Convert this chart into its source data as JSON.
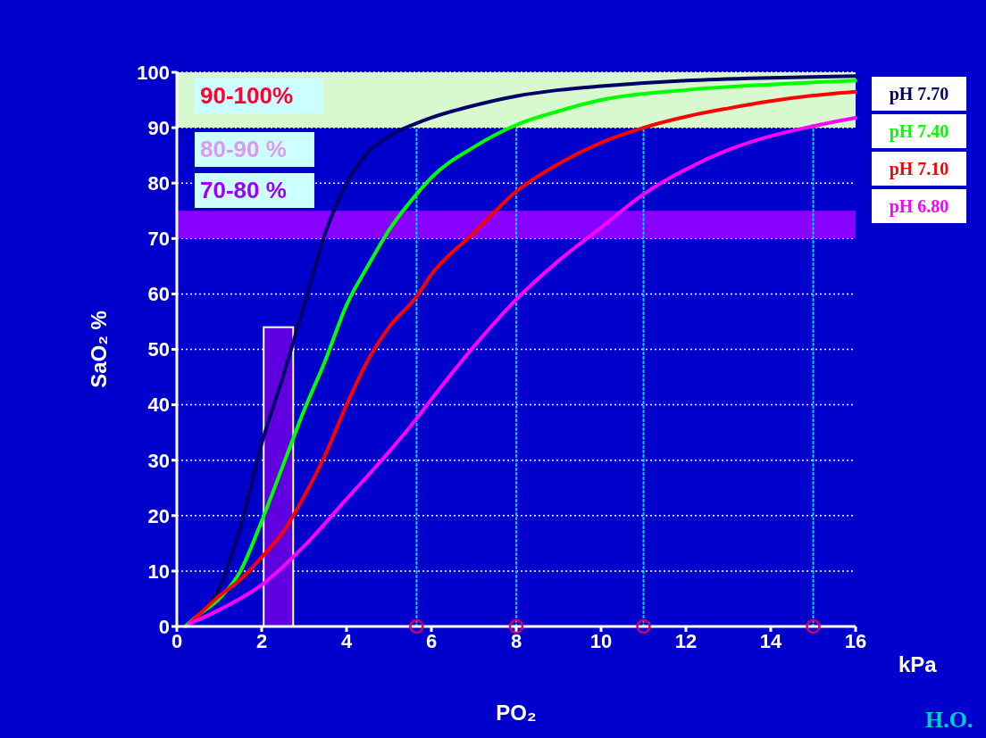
{
  "chart_data": {
    "type": "line",
    "xlabel": "PO₂",
    "ylabel": "SaO₂ %",
    "xlim": [
      0,
      16
    ],
    "xticks": [
      0,
      2,
      4,
      6,
      8,
      10,
      12,
      14,
      16
    ],
    "ylim": [
      0,
      100
    ],
    "yticks": [
      0,
      10,
      20,
      30,
      40,
      50,
      60,
      70,
      80,
      90,
      100
    ],
    "grid": "y",
    "legend": "right",
    "marker": "none",
    "line_style": "solid",
    "annotations": [
      "90-100%",
      "80-90 %",
      "70-80 %",
      "kPa",
      "H.O."
    ],
    "bands": [
      {
        "axis": "y",
        "from": 90,
        "to": 100,
        "color": "#d8f8d0"
      },
      {
        "axis": "y",
        "from": 70,
        "to": 75,
        "color": "#8800ff"
      }
    ],
    "series": [
      {
        "type": "bar",
        "color": "#6000e0",
        "x": [
          2.4
        ],
        "values": [
          54
        ]
      },
      {
        "type": "line",
        "line_style": "dotted",
        "color": "#00ccff",
        "x": [
          5.65,
          5.65
        ],
        "values": [
          0,
          90
        ]
      },
      {
        "type": "line",
        "line_style": "dotted",
        "color": "#00ccff",
        "x": [
          8,
          8
        ],
        "values": [
          0,
          90
        ]
      },
      {
        "type": "line",
        "line_style": "dotted",
        "color": "#00ccff",
        "x": [
          11,
          11
        ],
        "values": [
          0,
          90
        ]
      },
      {
        "type": "line",
        "line_style": "dotted",
        "color": "#00ccff",
        "x": [
          15,
          15
        ],
        "values": [
          0,
          90
        ]
      },
      {
        "name": "pH 7.70",
        "color": "#000066",
        "x": [
          0.2,
          0.5,
          1,
          1.5,
          2,
          2.5,
          3,
          3.5,
          4,
          4.5,
          5,
          5.65,
          6,
          7,
          8,
          9,
          10,
          12,
          14,
          16
        ],
        "values": [
          0,
          2,
          7,
          18,
          33,
          45,
          58,
          71,
          80,
          85.5,
          88.5,
          90.8,
          91.8,
          94,
          95.7,
          96.8,
          97.5,
          98.5,
          99,
          99.3
        ]
      },
      {
        "name": "pH 7.40",
        "color": "#00ff00",
        "x": [
          0.2,
          0.5,
          1,
          1.5,
          2,
          2.5,
          3,
          3.5,
          4,
          4.5,
          5,
          5.65,
          6,
          7,
          8,
          9,
          10,
          12,
          14,
          16
        ],
        "values": [
          0,
          2,
          5,
          10,
          19,
          29,
          39,
          48,
          58,
          65,
          71.5,
          78,
          81,
          86.5,
          90.5,
          93,
          95,
          96.8,
          97.8,
          98.5
        ]
      },
      {
        "name": "pH 7.10",
        "color": "#ff0000",
        "x": [
          0.3,
          1,
          1.5,
          2,
          2.5,
          3,
          3.5,
          4,
          4.5,
          5,
          5.65,
          6,
          7,
          8,
          9,
          10,
          11,
          12,
          13,
          14,
          15,
          16
        ],
        "values": [
          0.5,
          5.5,
          8.5,
          12.5,
          17,
          23.5,
          31,
          40,
          48,
          54,
          59.5,
          63.5,
          71,
          78.5,
          83.5,
          87.3,
          90,
          92,
          93.5,
          94.8,
          95.8,
          96.5
        ]
      },
      {
        "name": "pH 6.80",
        "color": "#ff00ff",
        "x": [
          0.3,
          1,
          2,
          3,
          4,
          5,
          5.65,
          6,
          7,
          8,
          9,
          10,
          11,
          12,
          13,
          14,
          15,
          16
        ],
        "values": [
          0.5,
          3,
          7.5,
          14.5,
          23,
          31.5,
          37.5,
          41,
          50.5,
          59,
          66,
          72,
          78,
          82.5,
          86,
          88.5,
          90.3,
          91.8
        ]
      },
      {
        "type": "scatter",
        "marker": "circle",
        "color": "#cc0066",
        "x": [
          5.65,
          8,
          11,
          15
        ],
        "values": [
          0,
          0,
          0,
          0
        ]
      }
    ]
  }
}
